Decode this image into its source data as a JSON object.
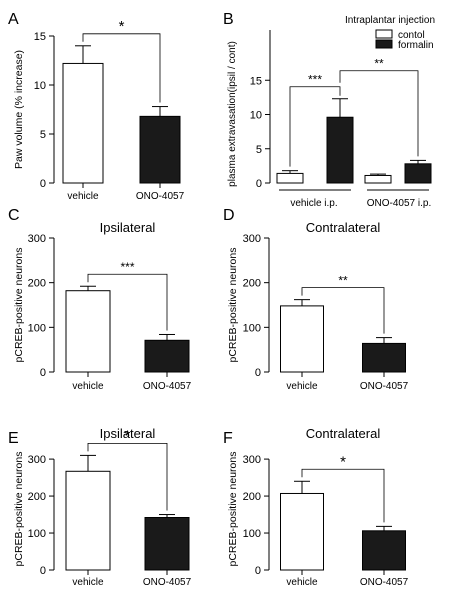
{
  "chart_data": [
    {
      "panel": "A",
      "type": "bar",
      "title": "",
      "ylabel": "Paw volume (% increase)",
      "ylim": [
        0,
        15
      ],
      "yticks": [
        0,
        5,
        10,
        15
      ],
      "categories": [
        "vehicle",
        "ONO-4057"
      ],
      "values": [
        12.2,
        6.8
      ],
      "errors": [
        1.8,
        1.0
      ],
      "fills": [
        "#ffffff",
        "#1a1a1a"
      ],
      "annotations": [
        {
          "from": 0,
          "to": 1,
          "label": "*"
        }
      ]
    },
    {
      "panel": "B",
      "type": "bar",
      "title": "",
      "ylabel": "plasma extravasation(ipsil / cont)",
      "ylim": [
        0,
        20
      ],
      "yticks": [
        0,
        5,
        10,
        15
      ],
      "groups": [
        "vehicle i.p.",
        "ONO-4057 i.p."
      ],
      "legend": {
        "title": "Intraplantar injection",
        "placement": "top-right"
      },
      "series": [
        {
          "name": "contol",
          "values": [
            1.4,
            1.1
          ],
          "errors": [
            0.4,
            0.2
          ],
          "fill": "#ffffff"
        },
        {
          "name": "formalin",
          "values": [
            9.6,
            2.8
          ],
          "errors": [
            2.7,
            0.5
          ],
          "fill": "#1a1a1a"
        }
      ],
      "annotations": [
        {
          "label": "***",
          "between": "vehicle i.p. contol vs vehicle i.p. formalin"
        },
        {
          "label": "**",
          "between": "vehicle i.p. formalin vs ONO-4057 i.p. formalin"
        }
      ]
    },
    {
      "panel": "C",
      "type": "bar",
      "title": "Ipsilateral",
      "ylabel": "pCREB-positive neurons",
      "ylim": [
        0,
        300
      ],
      "yticks": [
        0,
        100,
        200,
        300
      ],
      "categories": [
        "vehicle",
        "ONO-4057"
      ],
      "values": [
        182,
        71
      ],
      "errors": [
        10,
        13
      ],
      "fills": [
        "#ffffff",
        "#1a1a1a"
      ],
      "annotations": [
        {
          "from": 0,
          "to": 1,
          "label": "***"
        }
      ]
    },
    {
      "panel": "D",
      "type": "bar",
      "title": "Contralateral",
      "ylabel": "pCREB-positive neurons",
      "ylim": [
        0,
        300
      ],
      "yticks": [
        0,
        100,
        200,
        300
      ],
      "categories": [
        "vehicle",
        "ONO-4057"
      ],
      "values": [
        148,
        64
      ],
      "errors": [
        14,
        13
      ],
      "fills": [
        "#ffffff",
        "#1a1a1a"
      ],
      "annotations": [
        {
          "from": 0,
          "to": 1,
          "label": "**"
        }
      ]
    },
    {
      "panel": "E",
      "type": "bar",
      "title": "Ipsilateral",
      "ylabel": "pCREB-positive neurons",
      "ylim": [
        0,
        330
      ],
      "yticks": [
        0,
        100,
        200,
        300
      ],
      "categories": [
        "vehicle",
        "ONO-4057"
      ],
      "values": [
        267,
        142
      ],
      "errors": [
        43,
        8
      ],
      "fills": [
        "#ffffff",
        "#1a1a1a"
      ],
      "annotations": [
        {
          "from": 0,
          "to": 1,
          "label": "*"
        }
      ]
    },
    {
      "panel": "F",
      "type": "bar",
      "title": "Contralateral",
      "ylabel": "pCREB-positive neurons",
      "ylim": [
        0,
        330
      ],
      "yticks": [
        0,
        100,
        200,
        300
      ],
      "categories": [
        "vehicle",
        "ONO-4057"
      ],
      "values": [
        207,
        106
      ],
      "errors": [
        33,
        12
      ],
      "fills": [
        "#ffffff",
        "#1a1a1a"
      ],
      "annotations": [
        {
          "from": 0,
          "to": 1,
          "label": "*"
        }
      ]
    }
  ]
}
